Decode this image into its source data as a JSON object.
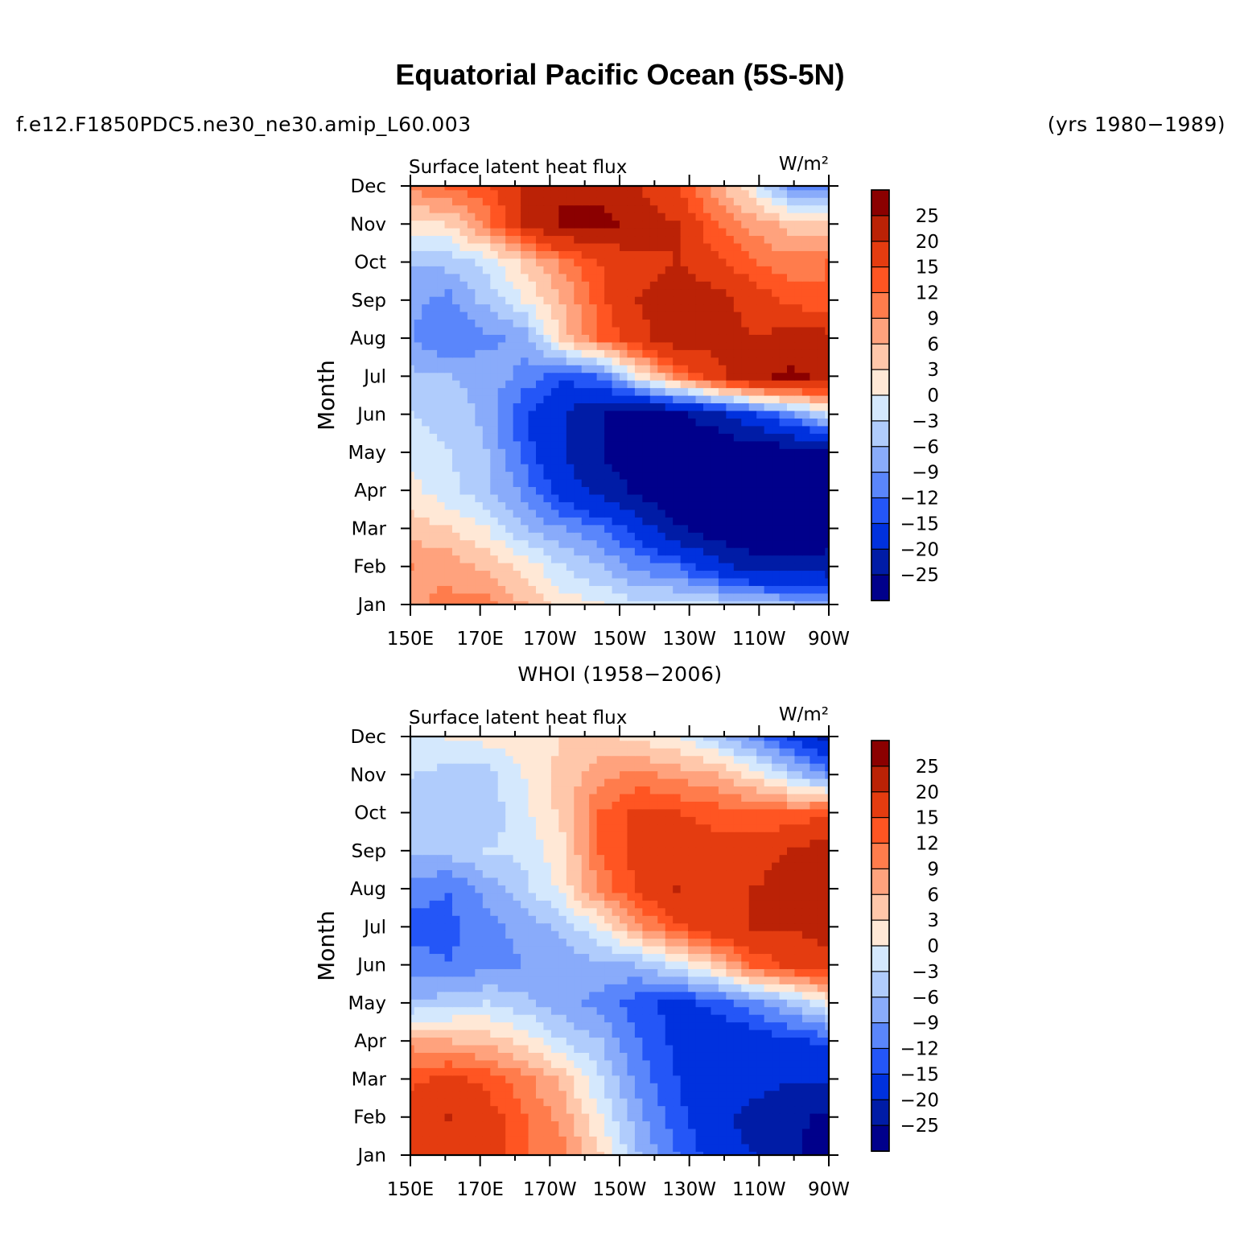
{
  "title": "Equatorial Pacific Ocean (5S-5N)",
  "subtitle_left": "f.e12.F1850PDC5.ne30_ne30.amip_L60.003",
  "subtitle_right": "(yrs 1980−1989)",
  "second_panel_title": "WHOI (1958−2006)",
  "chart_data": [
    {
      "type": "heatmap",
      "panel": "model",
      "variable": "Surface latent heat flux",
      "units": "W/m²",
      "ylabel": "Month",
      "x_ticks": [
        "150E",
        "170E",
        "170W",
        "150W",
        "130W",
        "110W",
        "90W"
      ],
      "x_values_deg_east": [
        150,
        170,
        190,
        210,
        230,
        250,
        270
      ],
      "y_ticks": [
        "Jan",
        "Feb",
        "Mar",
        "Apr",
        "May",
        "Jun",
        "Jul",
        "Aug",
        "Sep",
        "Oct",
        "Nov",
        "Dec"
      ],
      "z": [
        [
          8,
          10,
          10,
          6,
          2,
          0,
          -2,
          -2,
          -3,
          -5,
          -6,
          -9
        ],
        [
          9,
          8,
          5,
          2,
          -3,
          -6,
          -10,
          -12,
          -18,
          -22,
          -22,
          -23
        ],
        [
          5,
          3,
          0,
          -6,
          -9,
          -12,
          -17,
          -24,
          -28,
          -30,
          -30,
          -28
        ],
        [
          1,
          -2,
          -5,
          -10,
          -17,
          -22,
          -26,
          -30,
          -30,
          -30,
          -29,
          -26
        ],
        [
          -1,
          -3,
          -6,
          -13,
          -20,
          -25,
          -28,
          -30,
          -30,
          -29,
          -28,
          -26
        ],
        [
          -3,
          -4,
          -7,
          -15,
          -20,
          -25,
          -28,
          -26,
          -22,
          -16,
          -10,
          -3
        ],
        [
          -5,
          -6,
          -7,
          -10,
          -14,
          -12,
          0,
          10,
          18,
          24,
          26,
          24
        ],
        [
          -9,
          -12,
          -10,
          -8,
          4,
          12,
          18,
          24,
          22,
          20,
          22,
          22
        ],
        [
          -8,
          -10,
          -5,
          0,
          6,
          14,
          20,
          24,
          22,
          18,
          14,
          12
        ],
        [
          -6,
          -5,
          -2,
          4,
          10,
          15,
          18,
          20,
          16,
          12,
          10,
          12
        ],
        [
          2,
          3,
          10,
          20,
          26,
          26,
          24,
          20,
          12,
          8,
          5,
          4
        ],
        [
          10,
          12,
          14,
          20,
          24,
          24,
          20,
          15,
          8,
          0,
          -10,
          -12
        ]
      ]
    },
    {
      "type": "heatmap",
      "panel": "WHOI",
      "title": "WHOI (1958−2006)",
      "variable": "Surface latent heat flux",
      "units": "W/m²",
      "ylabel": "Month",
      "x_ticks": [
        "150E",
        "170E",
        "170W",
        "150W",
        "130W",
        "110W",
        "90W"
      ],
      "x_values_deg_east": [
        150,
        170,
        190,
        210,
        230,
        250,
        270
      ],
      "y_ticks": [
        "Jan",
        "Feb",
        "Mar",
        "Apr",
        "May",
        "Jun",
        "Jul",
        "Aug",
        "Sep",
        "Oct",
        "Nov",
        "Dec"
      ],
      "z": [
        [
          18,
          19,
          18,
          12,
          10,
          3,
          -6,
          -12,
          -17,
          -20,
          -24,
          -28
        ],
        [
          18,
          20,
          17,
          12,
          8,
          0,
          -8,
          -14,
          -18,
          -22,
          -24,
          -26
        ],
        [
          14,
          16,
          14,
          10,
          5,
          -3,
          -10,
          -15,
          -17,
          -18,
          -20,
          -20
        ],
        [
          8,
          6,
          5,
          2,
          -3,
          -6,
          -12,
          -16,
          -18,
          -18,
          -16,
          -14
        ],
        [
          -6,
          -4,
          -3,
          -5,
          -8,
          -10,
          -14,
          -16,
          -14,
          -10,
          -6,
          0
        ],
        [
          -10,
          -12,
          -10,
          -9,
          -8,
          -7,
          -6,
          -2,
          4,
          12,
          16,
          18
        ],
        [
          -14,
          -13,
          -10,
          -8,
          -5,
          0,
          8,
          14,
          18,
          20,
          20,
          22
        ],
        [
          -10,
          -12,
          -8,
          -4,
          1,
          10,
          16,
          20,
          18,
          20,
          22,
          24
        ],
        [
          -6,
          -5,
          -3,
          -2,
          2,
          12,
          16,
          18,
          16,
          18,
          20,
          24
        ],
        [
          -4,
          -6,
          -5,
          -1,
          4,
          12,
          16,
          15,
          14,
          12,
          12,
          14
        ],
        [
          -3,
          -4,
          -4,
          0,
          4,
          8,
          10,
          8,
          6,
          2,
          -4,
          -10
        ],
        [
          -1,
          0,
          1,
          2,
          3,
          4,
          2,
          0,
          -4,
          -10,
          -16,
          -22
        ]
      ]
    }
  ],
  "colorbar": {
    "levels": [
      "25",
      "20",
      "15",
      "12",
      "9",
      "6",
      "3",
      "0",
      "−3",
      "−6",
      "−9",
      "−12",
      "−15",
      "−20",
      "−25"
    ],
    "level_values": [
      25,
      20,
      15,
      12,
      9,
      6,
      3,
      0,
      -3,
      -6,
      -9,
      -12,
      -15,
      -20,
      -25
    ],
    "colors_top_to_bottom": [
      "#8b0000",
      "#bb2206",
      "#e43c10",
      "#ff5522",
      "#ff7c4c",
      "#ffa27d",
      "#ffc7aa",
      "#ffe8d6",
      "#d4e8fd",
      "#b0ccfc",
      "#89abfa",
      "#5a86fb",
      "#2456f7",
      "#0031de",
      "#001ca6",
      "#00008b"
    ]
  }
}
